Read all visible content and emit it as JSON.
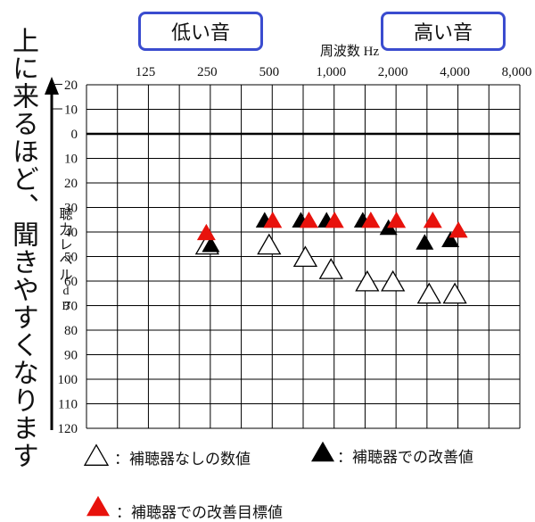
{
  "side_text": "上に来るほど、聞きやすくなります",
  "tags": {
    "low": "低い音",
    "high": "高い音"
  },
  "legend": {
    "open": "：補聴器なしの数値",
    "filled": "：補聴器での改善値",
    "red": "：補聴器での改善目標値"
  },
  "colors": {
    "red": "#e8120c",
    "black": "#000000",
    "tag_border": "#3a4ccf"
  },
  "chart_data": {
    "type": "scatter",
    "title": "",
    "xlabel": "周波数 Hz",
    "ylabel": "聴力レベル dB",
    "x_scale": "log2",
    "x_ticks": [
      125,
      250,
      500,
      1000,
      2000,
      4000,
      8000
    ],
    "x_tick_labels": [
      "125",
      "250",
      "500",
      "1,000",
      "2,000",
      "4,000",
      "8,000"
    ],
    "ylim": [
      -20,
      120
    ],
    "y_inverted": true,
    "y_ticks": [
      -20,
      -10,
      0,
      10,
      20,
      30,
      40,
      50,
      60,
      70,
      80,
      90,
      100,
      110,
      120
    ],
    "y_tick_labels": [
      "－20",
      "－10",
      "0",
      "10",
      "20",
      "30",
      "40",
      "50",
      "60",
      "70",
      "80",
      "90",
      "100",
      "110",
      "120"
    ],
    "reference_line_y": 0,
    "grid": true,
    "series": [
      {
        "name": "補聴器なしの数値",
        "marker": "open-triangle",
        "color": "#000000",
        "points": [
          [
            250,
            45
          ],
          [
            500,
            45
          ],
          [
            750,
            50
          ],
          [
            1000,
            55
          ],
          [
            1500,
            60
          ],
          [
            2000,
            60
          ],
          [
            3000,
            65
          ],
          [
            4000,
            65
          ]
        ]
      },
      {
        "name": "補聴器での改善値",
        "marker": "filled-triangle",
        "color": "#000000",
        "points": [
          [
            250,
            45
          ],
          [
            500,
            35
          ],
          [
            750,
            35
          ],
          [
            1000,
            35
          ],
          [
            1500,
            35
          ],
          [
            2000,
            38
          ],
          [
            3000,
            44
          ],
          [
            4000,
            43
          ]
        ]
      },
      {
        "name": "補聴器での改善目標値",
        "marker": "filled-triangle",
        "color": "#e8120c",
        "points": [
          [
            250,
            40
          ],
          [
            500,
            35
          ],
          [
            750,
            35
          ],
          [
            1000,
            35
          ],
          [
            1500,
            35
          ],
          [
            2000,
            35
          ],
          [
            3000,
            35
          ],
          [
            4000,
            39
          ]
        ]
      }
    ]
  }
}
